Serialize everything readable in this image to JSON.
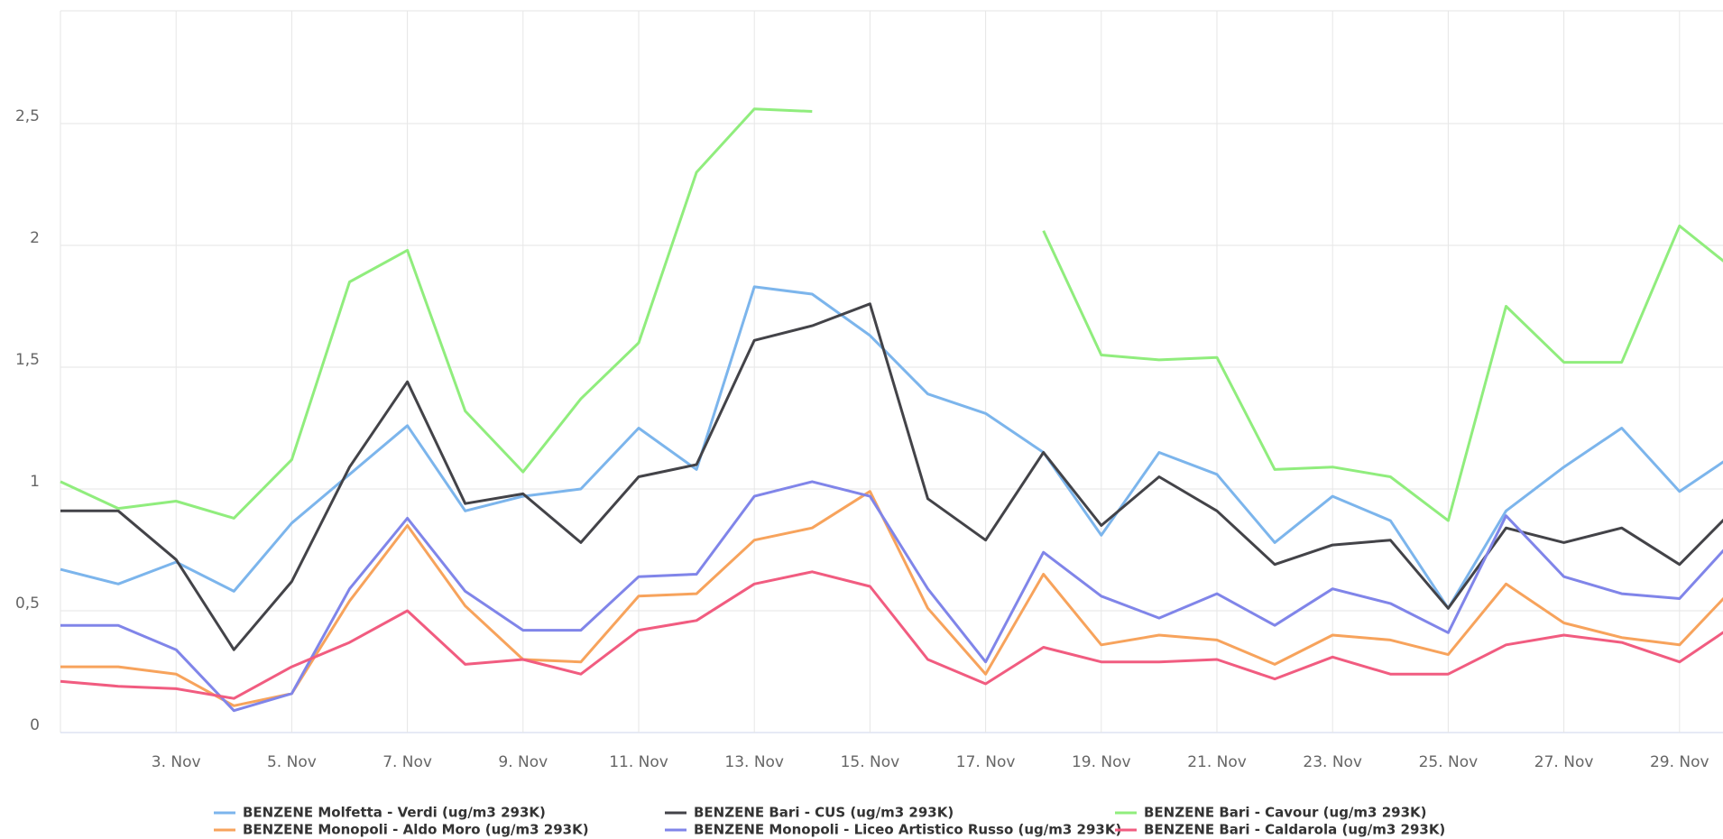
{
  "chart_data": {
    "type": "line",
    "categories": [
      null,
      null,
      "3. Nov",
      null,
      "5. Nov",
      null,
      "7. Nov",
      null,
      "9. Nov",
      null,
      "11. Nov",
      null,
      "13. Nov",
      null,
      "15. Nov",
      null,
      "17. Nov",
      null,
      "19. Nov",
      null,
      "21. Nov",
      null,
      "23. Nov",
      null,
      "25. Nov",
      null,
      "27. Nov",
      null,
      "29. Nov",
      null
    ],
    "ylim": [
      0,
      3
    ],
    "yticks": [
      0,
      {
        "value": 0.5,
        "label": "0,5"
      },
      1,
      {
        "value": 1.5,
        "label": "1,5"
      },
      2,
      {
        "value": 2.5,
        "label": "2,5"
      }
    ],
    "grid": true,
    "legend": "bottom",
    "series": [
      {
        "name": "BENZENE Molfetta - Verdi (ug/m3 293K)",
        "color": "#7cb5ec",
        "values": [
          0.67,
          0.61,
          0.7,
          0.58,
          0.86,
          1.06,
          1.26,
          0.91,
          0.97,
          1.0,
          1.25,
          1.08,
          1.83,
          1.8,
          1.63,
          1.39,
          1.31,
          1.15,
          0.81,
          1.15,
          1.06,
          0.78,
          0.97,
          0.87,
          0.51,
          0.91,
          1.09,
          1.25,
          0.99,
          1.15
        ]
      },
      {
        "name": "BENZENE Bari - CUS (ug/m3 293K)",
        "color": "#434348",
        "values": [
          0.91,
          0.91,
          0.71,
          0.34,
          0.62,
          1.09,
          1.44,
          0.94,
          0.98,
          0.78,
          1.05,
          1.1,
          1.61,
          1.67,
          1.76,
          0.96,
          0.79,
          1.15,
          0.85,
          1.05,
          0.91,
          0.69,
          0.77,
          0.79,
          0.51,
          0.84,
          0.78,
          0.84,
          0.69,
          0.93
        ]
      },
      {
        "name": "BENZENE Bari - Cavour (ug/m3 293K)",
        "color": "#90ed7d",
        "values": [
          1.03,
          0.92,
          0.95,
          0.88,
          1.12,
          1.85,
          1.98,
          1.32,
          1.07,
          1.37,
          1.6,
          2.3,
          2.56,
          2.55,
          null,
          null,
          null,
          2.06,
          1.55,
          1.53,
          1.54,
          1.08,
          1.09,
          1.05,
          0.87,
          1.75,
          1.52,
          1.52,
          2.08,
          1.89
        ]
      },
      {
        "name": "BENZENE Monopoli - Aldo Moro (ug/m3 293K)",
        "color": "#f7a35c",
        "values": [
          0.27,
          0.27,
          0.24,
          0.11,
          0.16,
          0.54,
          0.85,
          0.52,
          0.3,
          0.29,
          0.56,
          0.57,
          0.79,
          0.84,
          0.99,
          0.51,
          0.24,
          0.65,
          0.36,
          0.4,
          0.38,
          0.28,
          0.4,
          0.38,
          0.32,
          0.61,
          0.45,
          0.39,
          0.36,
          0.61
        ]
      },
      {
        "name": "BENZENE Monopoli - Liceo Artistico Russo (ug/m3 293K)",
        "color": "#8085e9",
        "values": [
          0.44,
          0.44,
          0.34,
          0.09,
          0.16,
          0.59,
          0.88,
          0.58,
          0.42,
          0.42,
          0.64,
          0.65,
          0.97,
          1.03,
          0.97,
          0.59,
          0.29,
          0.74,
          0.56,
          0.47,
          0.57,
          0.44,
          0.59,
          0.53,
          0.41,
          0.89,
          0.64,
          0.57,
          0.55,
          0.81
        ]
      },
      {
        "name": "BENZENE Bari - Caldarola (ug/m3 293K)",
        "color": "#f15c80",
        "values": [
          0.21,
          0.19,
          0.18,
          0.14,
          0.27,
          0.37,
          0.5,
          0.28,
          0.3,
          0.24,
          0.42,
          0.46,
          0.61,
          0.66,
          0.6,
          0.3,
          0.2,
          0.35,
          0.29,
          0.29,
          0.3,
          0.22,
          0.31,
          0.24,
          0.24,
          0.36,
          0.4,
          0.37,
          0.29,
          0.45
        ]
      }
    ]
  }
}
